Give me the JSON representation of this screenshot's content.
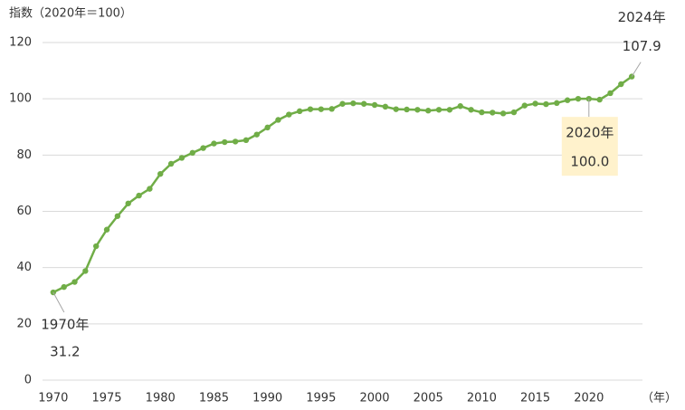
{
  "chart_data": {
    "type": "line",
    "y_axis_label": "指数（2020年＝100）",
    "x_axis_label": "（年）",
    "x": [
      1970,
      1971,
      1972,
      1973,
      1974,
      1975,
      1976,
      1977,
      1978,
      1979,
      1980,
      1981,
      1982,
      1983,
      1984,
      1985,
      1986,
      1987,
      1988,
      1989,
      1990,
      1991,
      1992,
      1993,
      1994,
      1995,
      1996,
      1997,
      1998,
      1999,
      2000,
      2001,
      2002,
      2003,
      2004,
      2005,
      2006,
      2007,
      2008,
      2009,
      2010,
      2011,
      2012,
      2013,
      2014,
      2015,
      2016,
      2017,
      2018,
      2019,
      2020,
      2021,
      2022,
      2023,
      2024
    ],
    "values": [
      31.2,
      33.1,
      34.9,
      38.8,
      47.6,
      53.5,
      58.3,
      62.8,
      65.6,
      68.0,
      73.3,
      76.9,
      79.0,
      80.8,
      82.5,
      84.1,
      84.6,
      84.8,
      85.3,
      87.3,
      89.8,
      92.5,
      94.4,
      95.6,
      96.3,
      96.3,
      96.4,
      98.2,
      98.4,
      98.2,
      97.8,
      97.2,
      96.3,
      96.2,
      96.1,
      95.8,
      96.1,
      96.1,
      97.4,
      96.1,
      95.2,
      95.1,
      94.8,
      95.2,
      97.6,
      98.3,
      98.1,
      98.5,
      99.5,
      100.0,
      100.0,
      99.7,
      102.0,
      105.2,
      107.9
    ],
    "point_labels": [
      "1970年",
      null,
      null,
      null,
      null,
      null,
      null,
      null,
      null,
      null,
      null,
      null,
      null,
      null,
      null,
      null,
      null,
      null,
      null,
      null,
      null,
      null,
      null,
      null,
      null,
      null,
      null,
      null,
      null,
      null,
      null,
      null,
      null,
      null,
      null,
      null,
      null,
      null,
      null,
      null,
      null,
      null,
      null,
      null,
      null,
      null,
      null,
      null,
      null,
      null,
      "2020年",
      null,
      null,
      null,
      "2024年"
    ],
    "value_labels": [
      "31.2",
      null,
      null,
      null,
      null,
      null,
      null,
      null,
      null,
      null,
      null,
      null,
      null,
      null,
      null,
      null,
      null,
      null,
      null,
      null,
      null,
      null,
      null,
      null,
      null,
      null,
      null,
      null,
      null,
      null,
      null,
      null,
      null,
      null,
      null,
      null,
      null,
      null,
      null,
      null,
      null,
      null,
      null,
      null,
      null,
      null,
      null,
      null,
      null,
      null,
      "100.0",
      null,
      null,
      null,
      "107.9"
    ],
    "color": "#70ad47",
    "xlim": [
      1969,
      2025
    ],
    "xticks": [
      1970,
      1975,
      1980,
      1985,
      1990,
      1995,
      2000,
      2005,
      2010,
      2015,
      2020
    ],
    "ylim": [
      0,
      120
    ],
    "yticks": [
      0,
      20,
      40,
      60,
      80,
      100,
      120
    ],
    "grid": true
  }
}
